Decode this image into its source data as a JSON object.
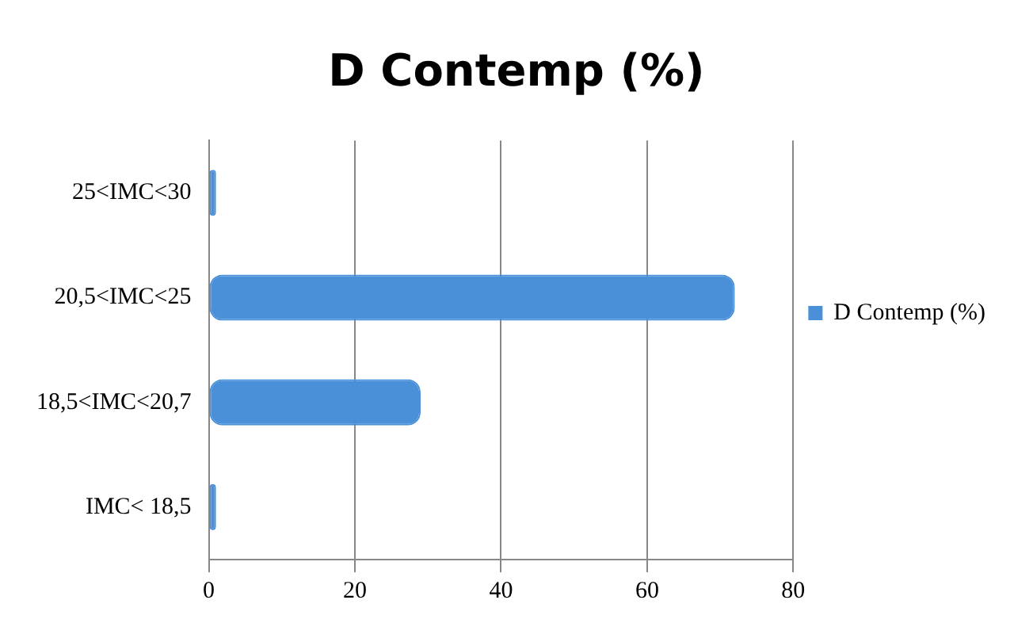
{
  "chart_data": {
    "type": "bar",
    "orientation": "horizontal",
    "title": "D Contemp (%)",
    "categories": [
      "25<IMC<30",
      "20,5<IMC<25",
      "18,5<IMC<20,7",
      "IMC< 18,5"
    ],
    "series": [
      {
        "name": "D Contemp (%)",
        "color": "#4a90d9",
        "values": [
          1,
          72,
          29,
          1
        ]
      }
    ],
    "xlim": [
      0,
      80
    ],
    "xticks": [
      0,
      20,
      40,
      60,
      80
    ],
    "grid": "x",
    "legend": "right"
  }
}
